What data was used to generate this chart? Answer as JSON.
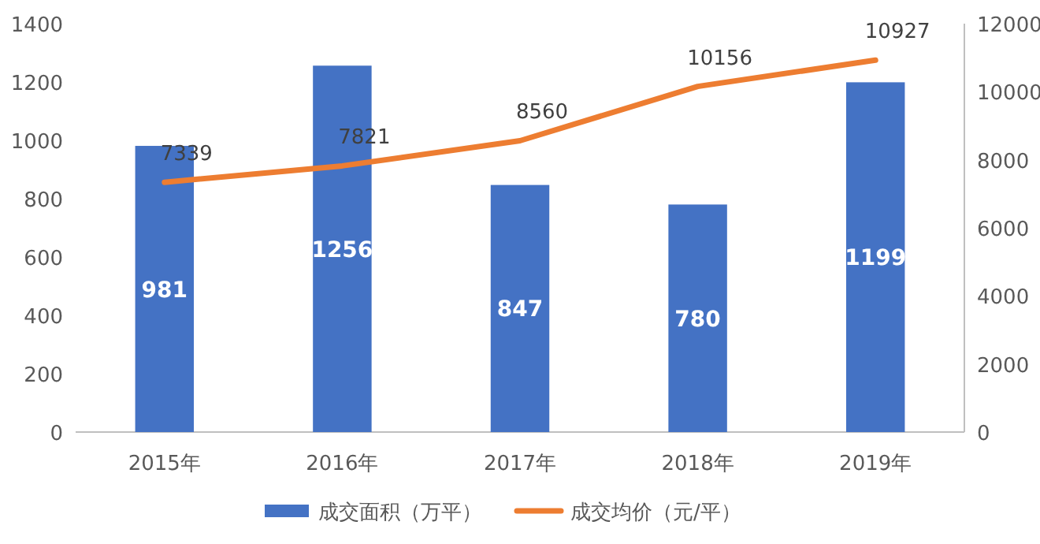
{
  "chart_data": {
    "type": "bar",
    "categories": [
      "2015年",
      "2016年",
      "2017年",
      "2018年",
      "2019年"
    ],
    "series": [
      {
        "name": "成交面积（万平）",
        "color": "#4472c4",
        "values": [
          981,
          1256,
          847,
          780,
          1199
        ]
      },
      {
        "name": "成交均价（元/平）",
        "type": "line",
        "axis": "y2",
        "color": "#ed7d31",
        "values": [
          7339,
          7821,
          8560,
          10156,
          10927
        ]
      }
    ],
    "ylim": [
      0,
      1400
    ],
    "yticks": [
      0,
      200,
      400,
      600,
      800,
      1000,
      1200,
      1400
    ],
    "y2lim": [
      0,
      12000
    ],
    "y2ticks": [
      0,
      2000,
      4000,
      6000,
      8000,
      10000,
      12000
    ],
    "data_labels": true,
    "legend": "bottom",
    "grid": false,
    "marker": "none",
    "line_style": "solid"
  }
}
